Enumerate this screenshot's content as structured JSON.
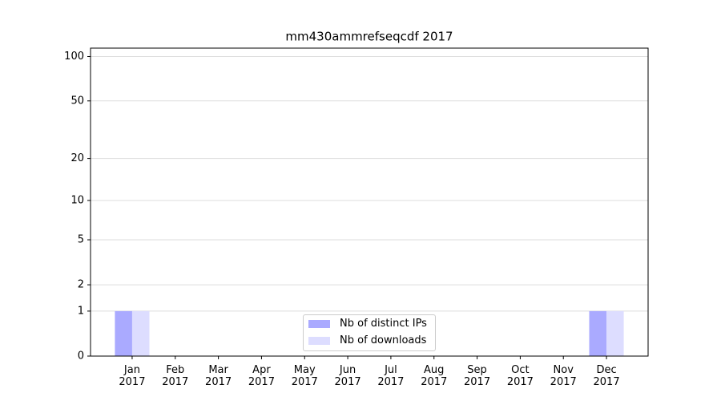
{
  "chart_data": {
    "type": "bar",
    "title": "mm430ammrefseqcdf 2017",
    "categories": [
      "Jan 2017",
      "Feb 2017",
      "Mar 2017",
      "Apr 2017",
      "May 2017",
      "Jun 2017",
      "Jul 2017",
      "Aug 2017",
      "Sep 2017",
      "Oct 2017",
      "Nov 2017",
      "Dec 2017"
    ],
    "series": [
      {
        "name": "Nb of distinct IPs",
        "color": "#aaaaff",
        "values": [
          1,
          0,
          0,
          0,
          0,
          0,
          0,
          0,
          0,
          0,
          0,
          1
        ]
      },
      {
        "name": "Nb of downloads",
        "color": "#ddddff",
        "values": [
          1,
          0,
          0,
          0,
          0,
          0,
          0,
          0,
          0,
          0,
          0,
          1
        ]
      }
    ],
    "yscale": "log1p",
    "ylim": [
      0,
      114
    ],
    "yticks": [
      0,
      1,
      2,
      5,
      10,
      20,
      50,
      100
    ],
    "grid": true,
    "legend": "lower center"
  }
}
